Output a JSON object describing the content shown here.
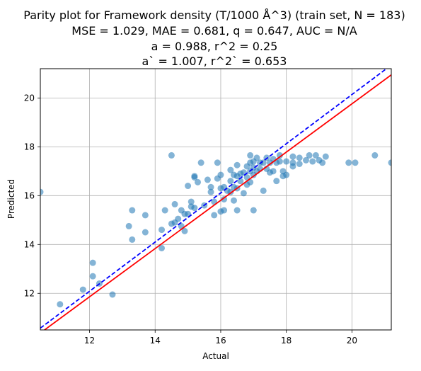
{
  "chart_data": {
    "type": "scatter",
    "title_lines": [
      "Parity plot for Framework density (T/1000 Å^3) (train set, N = 183)",
      "MSE = 1.029, MAE = 0.681, q = 0.647, AUC = N/A",
      "a = 0.988, r^2 = 0.25",
      "a` = 1.007, r^2` = 0.653"
    ],
    "xlabel": "Actual",
    "ylabel": "Predicted",
    "xlim": [
      10.5,
      21.2
    ],
    "ylim": [
      10.5,
      21.2
    ],
    "x_ticks": [
      12,
      14,
      16,
      18,
      20
    ],
    "y_ticks": [
      12,
      14,
      16,
      18,
      20
    ],
    "grid": true,
    "point_color": "#1f77b4",
    "series": [
      {
        "points": [
          [
            10.5,
            16.15
          ],
          [
            11.1,
            11.55
          ],
          [
            11.8,
            12.15
          ],
          [
            12.1,
            13.25
          ],
          [
            12.1,
            12.7
          ],
          [
            12.3,
            12.4
          ],
          [
            12.7,
            11.95
          ],
          [
            13.2,
            14.75
          ],
          [
            13.3,
            15.4
          ],
          [
            13.3,
            14.2
          ],
          [
            13.7,
            15.2
          ],
          [
            13.7,
            14.5
          ],
          [
            14.2,
            14.6
          ],
          [
            14.2,
            13.85
          ],
          [
            14.3,
            15.4
          ],
          [
            14.5,
            17.65
          ],
          [
            14.5,
            14.85
          ],
          [
            14.6,
            15.65
          ],
          [
            14.6,
            14.9
          ],
          [
            14.7,
            15.05
          ],
          [
            14.8,
            15.4
          ],
          [
            14.8,
            14.75
          ],
          [
            14.9,
            15.25
          ],
          [
            14.9,
            14.55
          ],
          [
            15.0,
            16.4
          ],
          [
            15.0,
            15.25
          ],
          [
            15.1,
            15.75
          ],
          [
            15.1,
            15.55
          ],
          [
            15.2,
            16.8
          ],
          [
            15.2,
            16.75
          ],
          [
            15.2,
            15.5
          ],
          [
            15.3,
            16.55
          ],
          [
            15.4,
            17.35
          ],
          [
            15.5,
            15.6
          ],
          [
            15.6,
            16.65
          ],
          [
            15.7,
            16.35
          ],
          [
            15.7,
            16.15
          ],
          [
            15.8,
            15.75
          ],
          [
            15.8,
            15.2
          ],
          [
            15.9,
            17.35
          ],
          [
            15.9,
            16.7
          ],
          [
            16.0,
            16.85
          ],
          [
            16.0,
            16.3
          ],
          [
            16.0,
            15.35
          ],
          [
            16.1,
            16.35
          ],
          [
            16.1,
            15.85
          ],
          [
            16.1,
            15.4
          ],
          [
            16.2,
            16.2
          ],
          [
            16.3,
            17.05
          ],
          [
            16.3,
            16.6
          ],
          [
            16.3,
            16.15
          ],
          [
            16.4,
            16.85
          ],
          [
            16.4,
            16.35
          ],
          [
            16.4,
            15.8
          ],
          [
            16.5,
            17.25
          ],
          [
            16.5,
            16.8
          ],
          [
            16.5,
            16.3
          ],
          [
            16.5,
            15.4
          ],
          [
            16.6,
            16.9
          ],
          [
            16.6,
            16.6
          ],
          [
            16.7,
            16.95
          ],
          [
            16.7,
            16.1
          ],
          [
            16.8,
            17.2
          ],
          [
            16.8,
            16.75
          ],
          [
            16.8,
            16.45
          ],
          [
            16.9,
            17.65
          ],
          [
            16.9,
            17.35
          ],
          [
            16.9,
            17.0
          ],
          [
            16.9,
            16.55
          ],
          [
            17.0,
            17.4
          ],
          [
            17.0,
            17.15
          ],
          [
            17.0,
            16.85
          ],
          [
            17.0,
            15.4
          ],
          [
            17.1,
            17.55
          ],
          [
            17.1,
            17.0
          ],
          [
            17.2,
            17.35
          ],
          [
            17.2,
            17.1
          ],
          [
            17.3,
            17.35
          ],
          [
            17.3,
            16.2
          ],
          [
            17.4,
            17.55
          ],
          [
            17.4,
            17.1
          ],
          [
            17.5,
            17.35
          ],
          [
            17.5,
            16.95
          ],
          [
            17.6,
            17.5
          ],
          [
            17.6,
            17.0
          ],
          [
            17.7,
            17.35
          ],
          [
            17.7,
            16.6
          ],
          [
            17.8,
            17.65
          ],
          [
            17.8,
            17.4
          ],
          [
            17.9,
            17.0
          ],
          [
            17.9,
            16.8
          ],
          [
            18.0,
            17.4
          ],
          [
            18.0,
            16.85
          ],
          [
            18.2,
            17.6
          ],
          [
            18.2,
            17.35
          ],
          [
            18.2,
            17.2
          ],
          [
            18.4,
            17.55
          ],
          [
            18.4,
            17.3
          ],
          [
            18.6,
            17.45
          ],
          [
            18.7,
            17.65
          ],
          [
            18.8,
            17.4
          ],
          [
            18.9,
            17.65
          ],
          [
            19.0,
            17.45
          ],
          [
            19.1,
            17.35
          ],
          [
            19.2,
            17.6
          ],
          [
            19.9,
            17.35
          ],
          [
            20.1,
            17.35
          ],
          [
            20.7,
            17.65
          ],
          [
            21.2,
            17.35
          ]
        ]
      }
    ],
    "lines": [
      {
        "style": "dashed",
        "color": "#0000ff",
        "slope": 1.007
      },
      {
        "style": "solid",
        "color": "#ff0000",
        "slope": 0.988
      }
    ]
  }
}
